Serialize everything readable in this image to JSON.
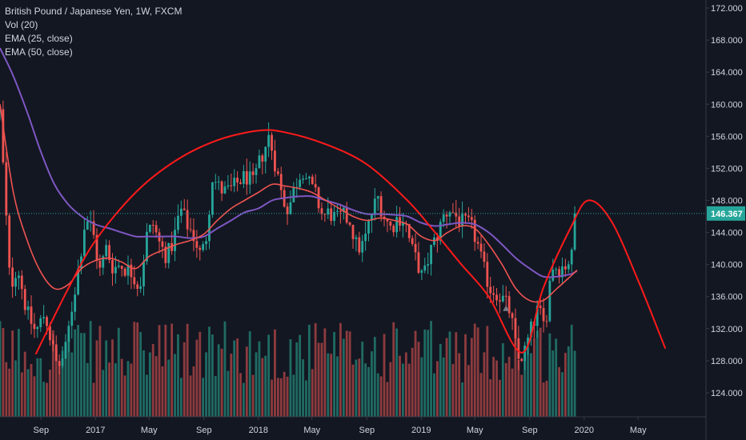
{
  "legend": {
    "title": "British Pound / Japanese Yen, 1W, FXCM",
    "vol": "Vol (20)",
    "ema25": "EMA (25, close)",
    "ema50": "EMA (50, close)"
  },
  "current_price": "146.367",
  "colors": {
    "background": "#131722",
    "up": "#26a69a",
    "down": "#ef5350",
    "vol_up": "#1f6b63",
    "vol_down": "#8d3b3e",
    "ema25": "#ef5350",
    "ema50": "#7e57c2",
    "arc": "#ff1a1a",
    "price_line": "#26a69a",
    "axis_border": "#363a45",
    "text": "#d1d4dc"
  },
  "chart_data": {
    "type": "candlestick",
    "title": "British Pound / Japanese Yen, 1W, FXCM",
    "ylim": [
      121.0,
      173.0
    ],
    "y_ticks": [
      "124.000",
      "128.000",
      "132.000",
      "136.000",
      "140.000",
      "144.000",
      "148.000",
      "152.000",
      "156.000",
      "160.000",
      "164.000",
      "168.000",
      "172.000"
    ],
    "x_ticks": [
      "Sep",
      "2017",
      "May",
      "Sep",
      "2018",
      "May",
      "Sep",
      "2019",
      "May",
      "Sep",
      "2020",
      "May"
    ],
    "x_range": [
      "2016-06-01",
      "2020-09-30"
    ],
    "x_tick_dates": [
      "2016-09-01",
      "2017-01-01",
      "2017-05-01",
      "2017-09-01",
      "2018-01-01",
      "2018-05-01",
      "2018-09-01",
      "2019-01-01",
      "2019-05-01",
      "2019-09-01",
      "2020-01-01",
      "2020-05-01"
    ],
    "close_series": {
      "name": "GBPJPY close (weekly, approx.)",
      "points": [
        [
          "2016-06-01",
          159.0
        ],
        [
          "2016-06-24",
          137.0
        ],
        [
          "2016-07-10",
          140.0
        ],
        [
          "2016-07-31",
          134.0
        ],
        [
          "2016-08-20",
          131.5
        ],
        [
          "2016-09-10",
          134.0
        ],
        [
          "2016-09-25",
          130.0
        ],
        [
          "2016-10-08",
          127.0
        ],
        [
          "2016-10-25",
          129.0
        ],
        [
          "2016-11-10",
          135.0
        ],
        [
          "2016-11-25",
          140.0
        ],
        [
          "2016-12-10",
          146.0
        ],
        [
          "2016-12-25",
          144.5
        ],
        [
          "2017-01-10",
          139.0
        ],
        [
          "2017-01-25",
          142.0
        ],
        [
          "2017-02-10",
          139.5
        ],
        [
          "2017-02-25",
          140.0
        ],
        [
          "2017-03-10",
          139.5
        ],
        [
          "2017-03-25",
          139.0
        ],
        [
          "2017-04-10",
          137.0
        ],
        [
          "2017-04-25",
          143.5
        ],
        [
          "2017-05-10",
          145.0
        ],
        [
          "2017-05-25",
          142.5
        ],
        [
          "2017-06-10",
          141.0
        ],
        [
          "2017-06-25",
          143.0
        ],
        [
          "2017-07-10",
          147.0
        ],
        [
          "2017-07-25",
          145.0
        ],
        [
          "2017-08-10",
          143.5
        ],
        [
          "2017-08-25",
          141.0
        ],
        [
          "2017-09-05",
          143.0
        ],
        [
          "2017-09-20",
          151.0
        ],
        [
          "2017-10-05",
          149.5
        ],
        [
          "2017-10-20",
          149.0
        ],
        [
          "2017-11-05",
          149.5
        ],
        [
          "2017-11-20",
          150.5
        ],
        [
          "2017-12-05",
          151.0
        ],
        [
          "2017-12-20",
          150.0
        ],
        [
          "2018-01-05",
          153.0
        ],
        [
          "2018-01-25",
          156.0
        ],
        [
          "2018-02-10",
          152.0
        ],
        [
          "2018-02-25",
          148.0
        ],
        [
          "2018-03-10",
          147.0
        ],
        [
          "2018-03-25",
          150.0
        ],
        [
          "2018-04-10",
          152.0
        ],
        [
          "2018-04-25",
          150.0
        ],
        [
          "2018-05-10",
          148.5
        ],
        [
          "2018-05-25",
          146.0
        ],
        [
          "2018-06-10",
          146.5
        ],
        [
          "2018-06-25",
          145.5
        ],
        [
          "2018-07-10",
          146.0
        ],
        [
          "2018-07-25",
          145.5
        ],
        [
          "2018-08-10",
          142.0
        ],
        [
          "2018-08-25",
          142.5
        ],
        [
          "2018-09-10",
          146.0
        ],
        [
          "2018-09-25",
          148.5
        ],
        [
          "2018-10-10",
          146.0
        ],
        [
          "2018-10-25",
          144.5
        ],
        [
          "2018-11-10",
          146.0
        ],
        [
          "2018-11-25",
          145.5
        ],
        [
          "2018-12-10",
          142.0
        ],
        [
          "2018-12-25",
          140.0
        ],
        [
          "2019-01-05",
          138.0
        ],
        [
          "2019-01-20",
          141.5
        ],
        [
          "2019-02-05",
          143.5
        ],
        [
          "2019-02-20",
          146.0
        ],
        [
          "2019-03-05",
          147.0
        ],
        [
          "2019-03-20",
          146.0
        ],
        [
          "2019-04-05",
          145.0
        ],
        [
          "2019-04-20",
          145.0
        ],
        [
          "2019-05-05",
          143.0
        ],
        [
          "2019-05-20",
          139.5
        ],
        [
          "2019-06-05",
          137.0
        ],
        [
          "2019-06-20",
          136.5
        ],
        [
          "2019-07-05",
          135.5
        ],
        [
          "2019-07-20",
          134.0
        ],
        [
          "2019-08-05",
          128.0
        ],
        [
          "2019-08-20",
          129.0
        ],
        [
          "2019-09-05",
          132.0
        ],
        [
          "2019-09-20",
          134.5
        ],
        [
          "2019-10-05",
          132.0
        ],
        [
          "2019-10-20",
          140.0
        ],
        [
          "2019-11-05",
          139.5
        ],
        [
          "2019-11-20",
          140.0
        ],
        [
          "2019-12-05",
          141.0
        ],
        [
          "2019-12-16",
          146.367
        ]
      ]
    },
    "ema25": {
      "name": "EMA (25, close)",
      "points": [
        [
          "2016-06-01",
          160.0
        ],
        [
          "2016-07-01",
          149.0
        ],
        [
          "2016-08-01",
          143.0
        ],
        [
          "2016-09-01",
          139.0
        ],
        [
          "2016-10-01",
          137.0
        ],
        [
          "2016-11-01",
          137.5
        ],
        [
          "2016-12-01",
          139.5
        ],
        [
          "2017-01-01",
          140.5
        ],
        [
          "2017-02-01",
          140.8
        ],
        [
          "2017-03-01",
          140.3
        ],
        [
          "2017-04-01",
          139.5
        ],
        [
          "2017-05-01",
          141.0
        ],
        [
          "2017-06-01",
          141.8
        ],
        [
          "2017-07-01",
          142.5
        ],
        [
          "2017-08-01",
          143.0
        ],
        [
          "2017-09-01",
          143.8
        ],
        [
          "2017-10-01",
          145.5
        ],
        [
          "2017-11-01",
          147.0
        ],
        [
          "2017-12-01",
          148.0
        ],
        [
          "2018-01-01",
          149.0
        ],
        [
          "2018-02-01",
          150.0
        ],
        [
          "2018-03-01",
          149.8
        ],
        [
          "2018-04-01",
          149.5
        ],
        [
          "2018-05-01",
          149.0
        ],
        [
          "2018-06-01",
          148.0
        ],
        [
          "2018-07-01",
          147.0
        ],
        [
          "2018-08-01",
          146.0
        ],
        [
          "2018-09-01",
          145.5
        ],
        [
          "2018-10-01",
          145.8
        ],
        [
          "2018-11-01",
          145.5
        ],
        [
          "2018-12-01",
          145.0
        ],
        [
          "2019-01-01",
          143.5
        ],
        [
          "2019-02-01",
          143.0
        ],
        [
          "2019-03-01",
          144.0
        ],
        [
          "2019-04-01",
          144.8
        ],
        [
          "2019-05-01",
          144.5
        ],
        [
          "2019-06-01",
          142.5
        ],
        [
          "2019-07-01",
          140.0
        ],
        [
          "2019-08-01",
          137.0
        ],
        [
          "2019-09-01",
          135.5
        ],
        [
          "2019-10-01",
          135.5
        ],
        [
          "2019-11-01",
          137.0
        ],
        [
          "2019-12-01",
          138.5
        ],
        [
          "2019-12-16",
          139.3
        ]
      ]
    },
    "ema50": {
      "name": "EMA (50, close)",
      "points": [
        [
          "2016-06-01",
          167.0
        ],
        [
          "2016-07-01",
          163.5
        ],
        [
          "2016-08-01",
          159.0
        ],
        [
          "2016-09-01",
          154.0
        ],
        [
          "2016-10-01",
          150.0
        ],
        [
          "2016-11-01",
          147.5
        ],
        [
          "2016-12-01",
          146.0
        ],
        [
          "2017-01-01",
          145.0
        ],
        [
          "2017-02-01",
          144.5
        ],
        [
          "2017-03-01",
          144.0
        ],
        [
          "2017-04-01",
          143.5
        ],
        [
          "2017-05-01",
          143.5
        ],
        [
          "2017-06-01",
          143.5
        ],
        [
          "2017-07-01",
          143.5
        ],
        [
          "2017-08-01",
          143.3
        ],
        [
          "2017-09-01",
          143.5
        ],
        [
          "2017-10-01",
          144.5
        ],
        [
          "2017-11-01",
          145.5
        ],
        [
          "2017-12-01",
          146.5
        ],
        [
          "2018-01-01",
          147.0
        ],
        [
          "2018-02-01",
          148.0
        ],
        [
          "2018-03-01",
          148.3
        ],
        [
          "2018-04-01",
          148.5
        ],
        [
          "2018-05-01",
          148.5
        ],
        [
          "2018-06-01",
          148.0
        ],
        [
          "2018-07-01",
          147.5
        ],
        [
          "2018-08-01",
          146.8
        ],
        [
          "2018-09-01",
          146.3
        ],
        [
          "2018-10-01",
          146.3
        ],
        [
          "2018-11-01",
          146.2
        ],
        [
          "2018-12-01",
          146.0
        ],
        [
          "2019-01-01",
          145.2
        ],
        [
          "2019-02-01",
          144.8
        ],
        [
          "2019-03-01",
          145.0
        ],
        [
          "2019-04-01",
          145.2
        ],
        [
          "2019-05-01",
          145.0
        ],
        [
          "2019-06-01",
          144.0
        ],
        [
          "2019-07-01",
          142.5
        ],
        [
          "2019-08-01",
          140.8
        ],
        [
          "2019-09-01",
          139.5
        ],
        [
          "2019-10-01",
          138.5
        ],
        [
          "2019-11-01",
          138.5
        ],
        [
          "2019-12-01",
          138.8
        ],
        [
          "2019-12-16",
          139.2
        ]
      ]
    },
    "arc_drawing": {
      "name": "Arc drawing (red)",
      "points": [
        [
          "2016-08-20",
          128.8
        ],
        [
          "2016-11-01",
          137.0
        ],
        [
          "2017-01-01",
          143.0
        ],
        [
          "2017-04-01",
          149.0
        ],
        [
          "2017-07-01",
          153.0
        ],
        [
          "2017-10-01",
          155.5
        ],
        [
          "2018-01-01",
          156.7
        ],
        [
          "2018-03-01",
          156.5
        ],
        [
          "2018-06-01",
          155.0
        ],
        [
          "2018-09-01",
          152.5
        ],
        [
          "2018-12-01",
          148.0
        ],
        [
          "2019-02-01",
          144.0
        ],
        [
          "2019-04-01",
          140.0
        ],
        [
          "2019-06-01",
          136.0
        ],
        [
          "2019-08-15",
          129.0
        ],
        [
          "2019-10-01",
          137.0
        ],
        [
          "2019-12-01",
          144.5
        ],
        [
          "2020-01-10",
          148.0
        ],
        [
          "2020-03-01",
          145.5
        ],
        [
          "2020-05-01",
          138.0
        ],
        [
          "2020-07-01",
          129.5
        ]
      ]
    }
  }
}
